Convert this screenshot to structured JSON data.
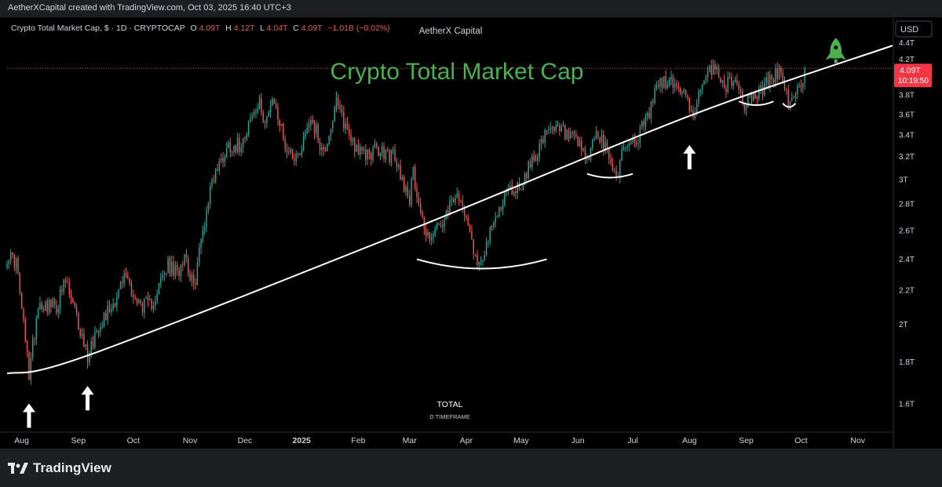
{
  "header": {
    "attribution": "AetherXCapital created with TradingView.com, Oct 03, 2025 16:40 UTC+3"
  },
  "legend": {
    "symbol": "Crypto Total Market Cap, $ · 1D · CRYPTOCAP",
    "o_label": "O",
    "o_value": "4.09T",
    "h_label": "H",
    "h_value": "4.12T",
    "l_label": "L",
    "l_value": "4.04T",
    "c_label": "C",
    "c_value": "4.09T",
    "change": "−1.01B (−0.02%)"
  },
  "watermark": "AetherX Capital",
  "currency": "USD",
  "headline": "Crypto Total Market Cap",
  "footer_label": "TOTAL",
  "footer_sublabel": "D TIMEFRAME",
  "price_tag": {
    "value": "4.09T",
    "countdown": "10:19:50"
  },
  "brand": "TradingView",
  "colors": {
    "up": "#26a69a",
    "down": "#ef5350",
    "headline": "#4caf50",
    "trendline": "#ffffff",
    "background": "#000000",
    "price_tag": "#f23645"
  },
  "icons": {
    "rocket": "rocket-icon",
    "arrow": "arrow-up-icon"
  },
  "chart_data": {
    "type": "candlestick",
    "title": "Crypto Total Market Cap",
    "y_scale": "log",
    "ylim": [
      1.48,
      4.72
    ],
    "y_ticks": [
      "4.4T",
      "4.2T",
      "3.8T",
      "3.6T",
      "3.4T",
      "3.2T",
      "3T",
      "2.8T",
      "2.6T",
      "2.4T",
      "2.2T",
      "2T",
      "1.8T",
      "1.6T"
    ],
    "x_ticks": [
      "Aug",
      "Sep",
      "Oct",
      "Nov",
      "Dec",
      "2025",
      "Feb",
      "Mar",
      "Apr",
      "May",
      "Jun",
      "Jul",
      "Aug",
      "Sep",
      "Oct",
      "Nov"
    ],
    "x_range": [
      "2024-07-24",
      "2025-11-20"
    ],
    "last_price": 4.09,
    "price_anchors": [
      [
        "2024-07-24",
        2.42
      ],
      [
        "2024-07-29",
        2.38
      ],
      [
        "2024-08-05",
        1.74
      ],
      [
        "2024-08-10",
        2.12
      ],
      [
        "2024-08-20",
        2.1
      ],
      [
        "2024-08-25",
        2.25
      ],
      [
        "2024-09-06",
        1.83
      ],
      [
        "2024-09-12",
        2.0
      ],
      [
        "2024-09-20",
        2.12
      ],
      [
        "2024-09-27",
        2.3
      ],
      [
        "2024-10-03",
        2.12
      ],
      [
        "2024-10-10",
        2.1
      ],
      [
        "2024-10-20",
        2.35
      ],
      [
        "2024-10-25",
        2.3
      ],
      [
        "2024-10-29",
        2.45
      ],
      [
        "2024-11-03",
        2.2
      ],
      [
        "2024-11-06",
        2.45
      ],
      [
        "2024-11-13",
        3.0
      ],
      [
        "2024-11-22",
        3.3
      ],
      [
        "2024-11-28",
        3.3
      ],
      [
        "2024-12-04",
        3.55
      ],
      [
        "2024-12-09",
        3.68
      ],
      [
        "2024-12-12",
        3.55
      ],
      [
        "2024-12-17",
        3.72
      ],
      [
        "2024-12-24",
        3.25
      ],
      [
        "2024-12-30",
        3.2
      ],
      [
        "2025-01-06",
        3.58
      ],
      [
        "2025-01-13",
        3.22
      ],
      [
        "2025-01-20",
        3.7
      ],
      [
        "2025-01-27",
        3.4
      ],
      [
        "2025-02-03",
        3.2
      ],
      [
        "2025-02-10",
        3.25
      ],
      [
        "2025-02-20",
        3.2
      ],
      [
        "2025-03-01",
        2.85
      ],
      [
        "2025-03-03",
        3.05
      ],
      [
        "2025-03-10",
        2.55
      ],
      [
        "2025-03-20",
        2.65
      ],
      [
        "2025-03-25",
        2.85
      ],
      [
        "2025-04-01",
        2.75
      ],
      [
        "2025-04-07",
        2.35
      ],
      [
        "2025-04-15",
        2.6
      ],
      [
        "2025-04-22",
        2.88
      ],
      [
        "2025-05-01",
        2.95
      ],
      [
        "2025-05-08",
        3.2
      ],
      [
        "2025-05-15",
        3.4
      ],
      [
        "2025-05-22",
        3.45
      ],
      [
        "2025-06-01",
        3.3
      ],
      [
        "2025-06-06",
        3.15
      ],
      [
        "2025-06-11",
        3.42
      ],
      [
        "2025-06-18",
        3.2
      ],
      [
        "2025-06-22",
        3.0
      ],
      [
        "2025-06-26",
        3.3
      ],
      [
        "2025-07-03",
        3.35
      ],
      [
        "2025-07-10",
        3.6
      ],
      [
        "2025-07-14",
        3.9
      ],
      [
        "2025-07-20",
        3.95
      ],
      [
        "2025-07-28",
        3.85
      ],
      [
        "2025-08-02",
        3.6
      ],
      [
        "2025-08-08",
        3.85
      ],
      [
        "2025-08-14",
        4.15
      ],
      [
        "2025-08-20",
        3.88
      ],
      [
        "2025-08-25",
        3.98
      ],
      [
        "2025-08-31",
        3.72
      ],
      [
        "2025-09-10",
        3.85
      ],
      [
        "2025-09-15",
        4.0
      ],
      [
        "2025-09-19",
        4.05
      ],
      [
        "2025-09-22",
        3.85
      ],
      [
        "2025-09-25",
        3.68
      ],
      [
        "2025-09-30",
        3.85
      ],
      [
        "2025-10-03",
        4.09
      ]
    ],
    "trendline": [
      [
        "2024-07-24",
        1.74
      ],
      [
        "2024-09-06",
        1.83
      ],
      [
        "2025-03-01",
        2.6
      ],
      [
        "2025-08-01",
        3.58
      ],
      [
        "2025-11-20",
        4.36
      ]
    ],
    "annotations": [
      {
        "type": "arc",
        "from": "2025-03-05",
        "to": "2025-05-15",
        "price": 2.35
      },
      {
        "type": "arc",
        "from": "2025-06-06",
        "to": "2025-07-01",
        "price": 3.02
      },
      {
        "type": "arc",
        "from": "2025-08-28",
        "to": "2025-09-16",
        "price": 3.7
      },
      {
        "type": "arc",
        "from": "2025-09-21",
        "to": "2025-09-28",
        "price": 3.68
      },
      {
        "type": "arrow-up",
        "date": "2024-08-05",
        "price": 1.6
      },
      {
        "type": "arrow-up",
        "date": "2024-09-06",
        "price": 1.68
      },
      {
        "type": "arrow-up",
        "date": "2025-08-01",
        "price": 3.3
      },
      {
        "type": "rocket",
        "date": "2025-10-20",
        "price": 4.28
      }
    ]
  }
}
